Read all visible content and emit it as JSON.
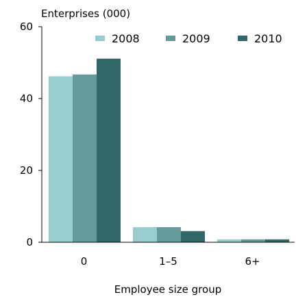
{
  "chart_data": {
    "type": "bar",
    "ylabel": "Enterprises (000)",
    "xlabel": "Employee size group",
    "categories": [
      "0",
      "1–5",
      "6+"
    ],
    "series": [
      {
        "name": "2008",
        "color": "#99cccc",
        "values": [
          46.2,
          4.2,
          0.8
        ]
      },
      {
        "name": "2009",
        "color": "#669999",
        "values": [
          46.7,
          4.2,
          0.8
        ]
      },
      {
        "name": "2010",
        "color": "#336666",
        "values": [
          51.1,
          3.1,
          0.8
        ]
      }
    ],
    "ylim": [
      0,
      60
    ],
    "yticks": [
      "0",
      "20",
      "40",
      "60"
    ],
    "ytick_values": [
      0,
      20,
      40,
      60
    ],
    "grid": false,
    "legend": "top-right"
  }
}
